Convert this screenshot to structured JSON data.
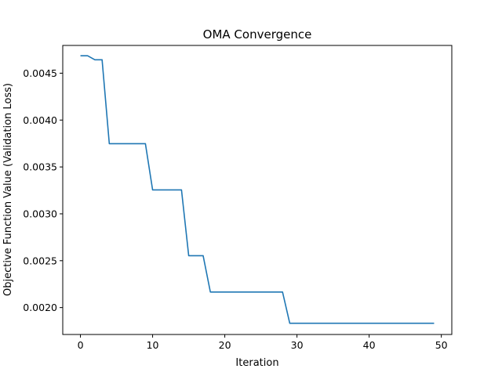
{
  "chart_data": {
    "type": "line",
    "title": "OMA Convergence",
    "xlabel": "Iteration",
    "ylabel": "Objective Function Value (Validation Loss)",
    "xlim": [
      -2.45,
      51.45
    ],
    "ylim": [
      0.001713,
      0.004796
    ],
    "xticks": [
      0,
      10,
      20,
      30,
      40,
      50
    ],
    "xtick_labels": [
      "0",
      "10",
      "20",
      "30",
      "40",
      "50"
    ],
    "yticks": [
      0.002,
      0.0025,
      0.003,
      0.0035,
      0.004,
      0.0045
    ],
    "ytick_labels": [
      "0.0020",
      "0.0025",
      "0.0030",
      "0.0035",
      "0.0040",
      "0.0045"
    ],
    "grid": false,
    "series": [
      {
        "color": "#1f77b4",
        "x": [
          0,
          1,
          2,
          3,
          4,
          5,
          6,
          7,
          8,
          9,
          10,
          11,
          12,
          13,
          14,
          15,
          16,
          17,
          18,
          19,
          20,
          21,
          22,
          23,
          24,
          25,
          26,
          27,
          28,
          29,
          30,
          31,
          32,
          33,
          34,
          35,
          36,
          37,
          38,
          39,
          40,
          41,
          42,
          43,
          44,
          45,
          46,
          47,
          48,
          49
        ],
        "y": [
          0.004686,
          0.004686,
          0.004643,
          0.004643,
          0.003748,
          0.003748,
          0.003748,
          0.003748,
          0.003748,
          0.003748,
          0.003255,
          0.003255,
          0.003255,
          0.003255,
          0.003255,
          0.002553,
          0.002553,
          0.002553,
          0.002166,
          0.002166,
          0.002166,
          0.002166,
          0.002166,
          0.002166,
          0.002166,
          0.002166,
          0.002166,
          0.002166,
          0.002166,
          0.001833,
          0.001833,
          0.001833,
          0.001833,
          0.001833,
          0.001833,
          0.001833,
          0.001833,
          0.001833,
          0.001833,
          0.001833,
          0.001833,
          0.001833,
          0.001833,
          0.001833,
          0.001833,
          0.001833,
          0.001833,
          0.001833,
          0.001833,
          0.001833
        ]
      }
    ]
  }
}
